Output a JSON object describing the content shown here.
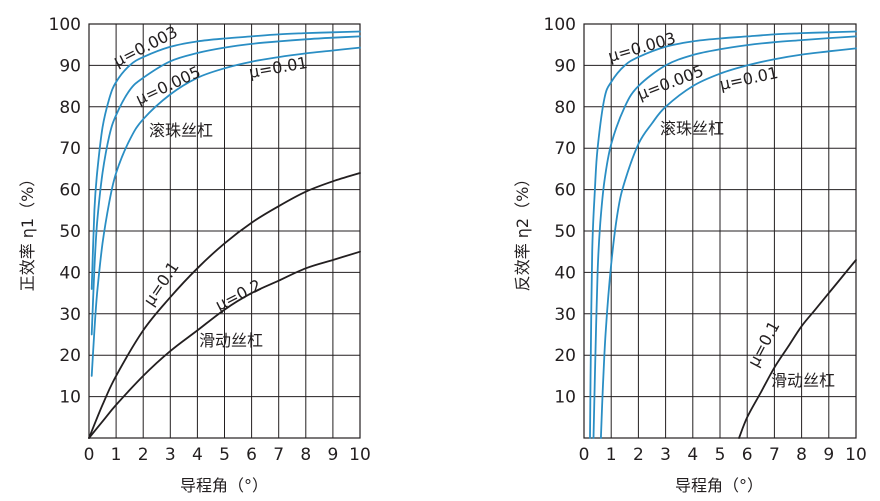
{
  "colors": {
    "ball": "#2a8ec4",
    "slide": "#231f20",
    "grid": "#231f20",
    "text": "#231f20"
  },
  "chart_data": [
    {
      "type": "line",
      "xlabel": "导程角（°）",
      "ylabel": "正效率 η1（%）",
      "xlim": [
        0,
        10
      ],
      "ylim": [
        0,
        100
      ],
      "x_ticks": [
        "0",
        "1",
        "2",
        "3",
        "4",
        "5",
        "6",
        "7",
        "8",
        "9",
        "10"
      ],
      "y_ticks": [
        "10",
        "20",
        "30",
        "40",
        "50",
        "60",
        "70",
        "80",
        "90",
        "100"
      ],
      "grid": true,
      "annotations": [
        "滚珠丝杠",
        "滑动丝杠"
      ],
      "series": [
        {
          "name": "μ=0.003",
          "group": "ball",
          "x": [
            0.1,
            0.2,
            0.3,
            0.5,
            0.75,
            1,
            1.5,
            2,
            3,
            4,
            5,
            6,
            7,
            8,
            9,
            10
          ],
          "y": [
            36,
            55,
            64,
            75,
            82,
            86,
            90,
            92,
            94.5,
            95.8,
            96.5,
            97,
            97.5,
            97.8,
            98,
            98.2
          ]
        },
        {
          "name": "μ=0.005",
          "group": "ball",
          "x": [
            0.1,
            0.2,
            0.3,
            0.5,
            0.75,
            1,
            1.5,
            2,
            3,
            4,
            5,
            6,
            7,
            8,
            9,
            10
          ],
          "y": [
            25,
            41,
            52,
            64,
            73,
            78,
            84,
            87,
            91,
            93,
            94.3,
            95.2,
            95.8,
            96.3,
            96.7,
            97
          ]
        },
        {
          "name": "μ=0.01",
          "group": "ball",
          "x": [
            0.1,
            0.2,
            0.3,
            0.5,
            0.75,
            1,
            1.5,
            2,
            3,
            4,
            5,
            6,
            7,
            8,
            9,
            10
          ],
          "y": [
            15,
            26,
            35,
            47,
            57,
            64,
            72,
            77,
            83,
            87,
            89.3,
            90.9,
            92,
            92.9,
            93.6,
            94.3
          ]
        },
        {
          "name": "μ=0.1",
          "group": "slide",
          "x": [
            0,
            0.5,
            1,
            2,
            3,
            4,
            5,
            6,
            7,
            8,
            9,
            10
          ],
          "y": [
            0,
            8,
            15,
            26,
            34,
            41,
            47,
            52,
            56,
            59.5,
            62,
            64
          ]
        },
        {
          "name": "μ=0.2",
          "group": "slide",
          "x": [
            0,
            0.5,
            1,
            2,
            3,
            4,
            5,
            6,
            7,
            8,
            9,
            10
          ],
          "y": [
            0,
            4,
            8,
            15,
            21,
            26,
            31,
            35,
            38,
            41,
            43,
            45
          ]
        }
      ]
    },
    {
      "type": "line",
      "xlabel": "导程角（°）",
      "ylabel": "反效率 η2（%）",
      "xlim": [
        0,
        10
      ],
      "ylim": [
        0,
        100
      ],
      "x_ticks": [
        "0",
        "1",
        "2",
        "3",
        "4",
        "5",
        "6",
        "7",
        "8",
        "9",
        "10"
      ],
      "y_ticks": [
        "10",
        "20",
        "30",
        "40",
        "50",
        "60",
        "70",
        "80",
        "90",
        "100"
      ],
      "grid": true,
      "annotations": [
        "滚珠丝杠",
        "滑动丝杠"
      ],
      "series": [
        {
          "name": "μ=0.003",
          "group": "ball",
          "x": [
            0.22,
            0.25,
            0.3,
            0.4,
            0.5,
            0.75,
            1,
            1.5,
            2,
            3,
            4,
            5,
            6,
            7,
            8,
            9,
            10
          ],
          "y": [
            0,
            20,
            45,
            60,
            70,
            82,
            86,
            90,
            92,
            94.5,
            95.8,
            96.5,
            97,
            97.5,
            97.8,
            98,
            98.2
          ]
        },
        {
          "name": "μ=0.005",
          "group": "ball",
          "x": [
            0.35,
            0.4,
            0.5,
            0.6,
            0.75,
            1,
            1.5,
            2,
            3,
            4,
            5,
            6,
            7,
            8,
            9,
            10
          ],
          "y": [
            0,
            15,
            40,
            52,
            62,
            71,
            80,
            85,
            90,
            92.5,
            93.9,
            94.9,
            95.6,
            96.1,
            96.6,
            97
          ]
        },
        {
          "name": "μ=0.01",
          "group": "ball",
          "x": [
            0.62,
            0.7,
            0.8,
            1,
            1.25,
            1.5,
            2,
            2.5,
            3,
            4,
            5,
            6,
            7,
            8,
            9,
            10
          ],
          "y": [
            0,
            13,
            26,
            42,
            55,
            62,
            71,
            76,
            80,
            85,
            88,
            90,
            91.5,
            92.6,
            93.4,
            94.1
          ]
        },
        {
          "name": "μ=0.1",
          "group": "slide",
          "x": [
            5.7,
            6,
            6.5,
            7,
            7.5,
            8,
            8.5,
            9,
            9.5,
            10
          ],
          "y": [
            0,
            5,
            11,
            17,
            22,
            27,
            31,
            35,
            39,
            43
          ]
        }
      ]
    }
  ],
  "labels": {
    "left": {
      "mu_003": "μ=0.003",
      "mu_005": "μ=0.005",
      "mu_001": "μ=0.01",
      "mu_01": "μ=0.1",
      "mu_02": "μ=0.2",
      "ball": "滚珠丝杠",
      "slide": "滑动丝杠"
    },
    "right": {
      "mu_003": "μ=0.003",
      "mu_005": "μ=0.005",
      "mu_001": "μ=0.01",
      "mu_01": "μ=0.1",
      "ball": "滚珠丝杠",
      "slide": "滑动丝杠"
    }
  }
}
